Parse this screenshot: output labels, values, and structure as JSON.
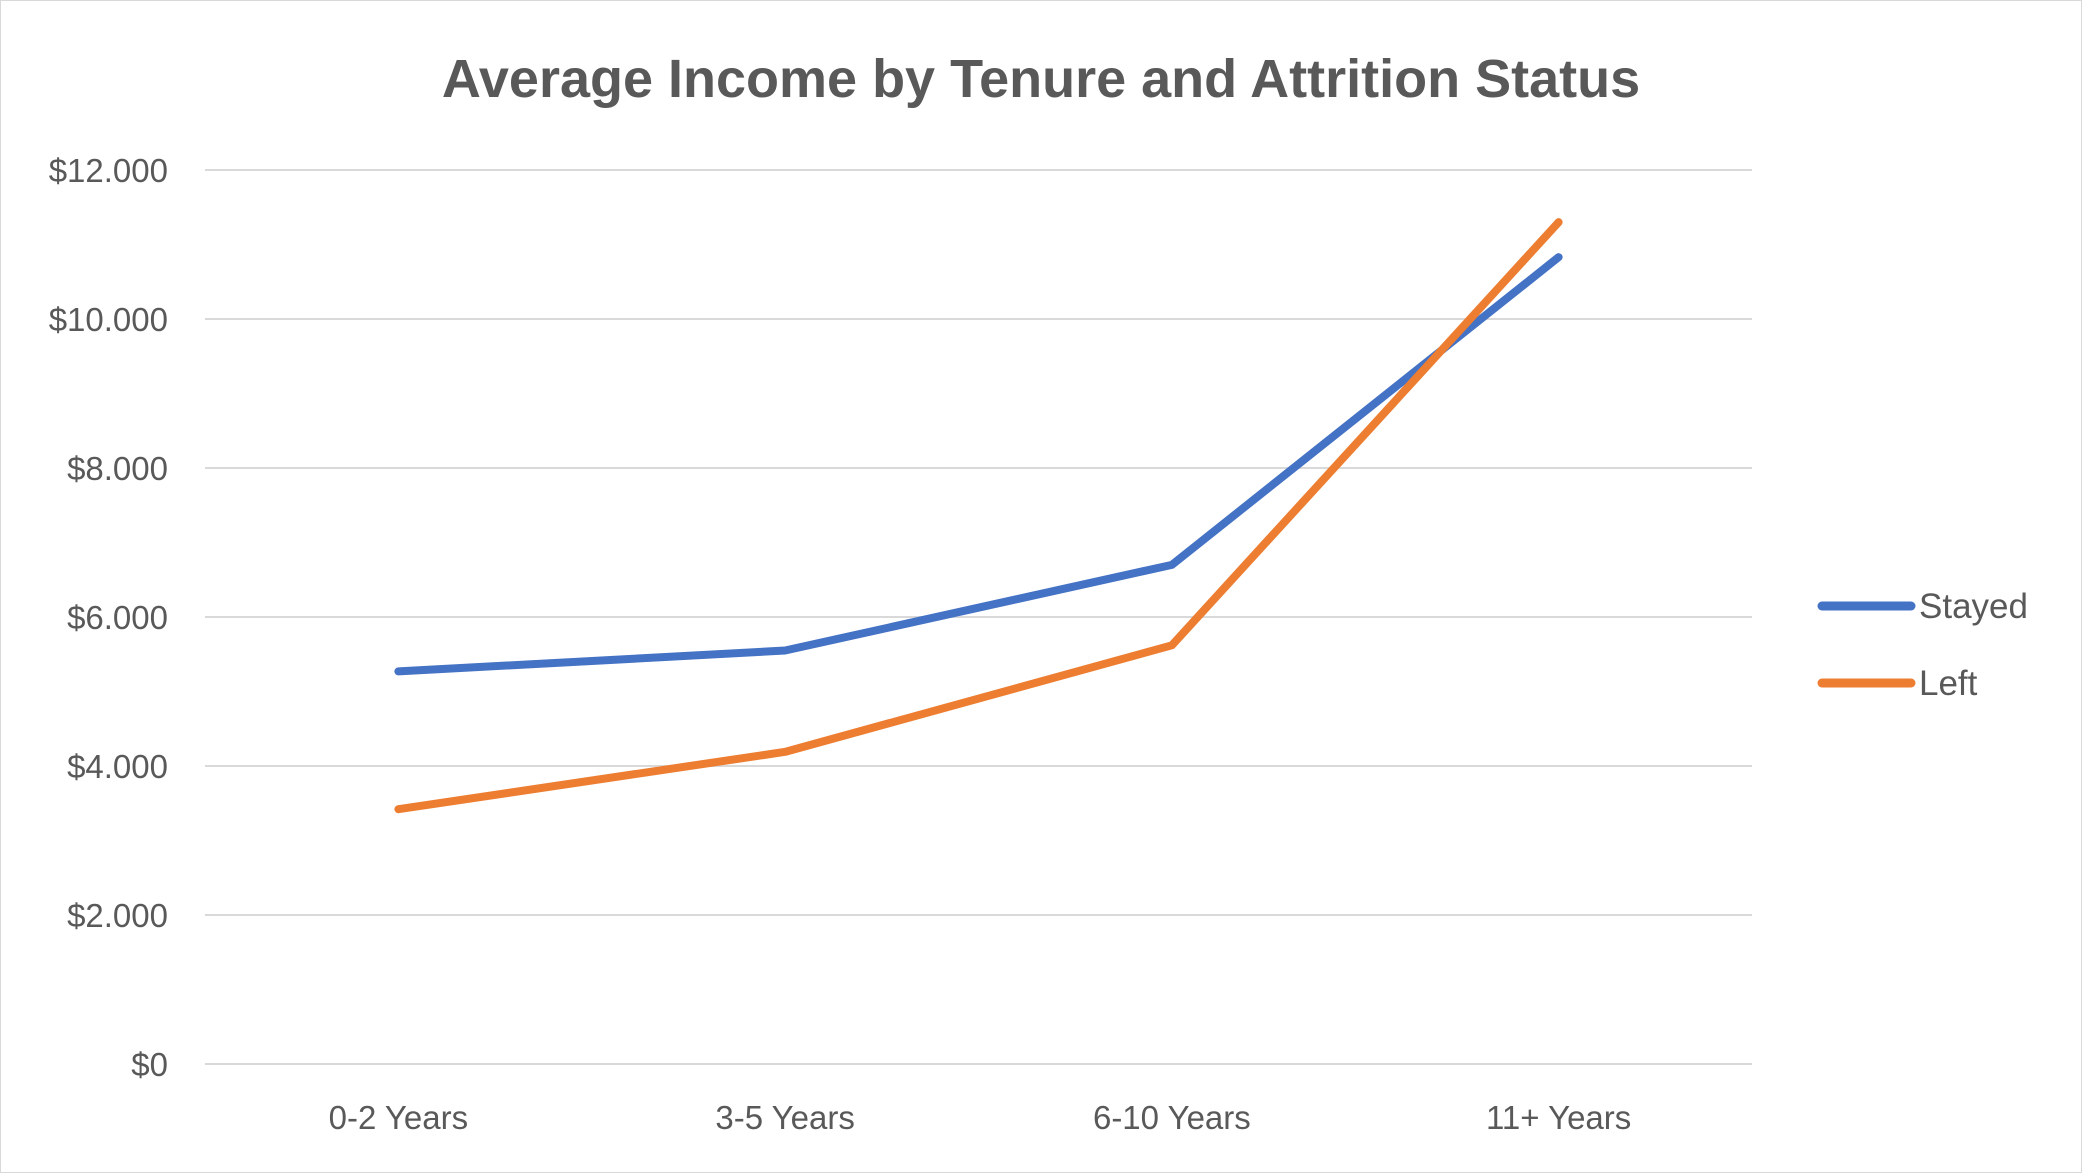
{
  "chart_data": {
    "type": "line",
    "title": "Average Income by Tenure and Attrition Status",
    "xlabel": "",
    "ylabel": "",
    "categories": [
      "0-2 Years",
      "3-5 Years",
      "6-10 Years",
      "11+ Years"
    ],
    "series": [
      {
        "name": "Stayed",
        "values": [
          5270,
          5550,
          6700,
          10830
        ],
        "color": "#4472C4"
      },
      {
        "name": "Left",
        "values": [
          3420,
          4190,
          5620,
          11300
        ],
        "color": "#ED7D31"
      }
    ],
    "ylim": [
      0,
      12000
    ],
    "yticks": [
      0,
      2000,
      4000,
      6000,
      8000,
      10000,
      12000
    ],
    "ytick_labels": [
      "$0",
      "$2.000",
      "$4.000",
      "$6.000",
      "$8.000",
      "$10.000",
      "$12.000"
    ],
    "grid": true,
    "gridline_color": "#d9d9d9",
    "legend_position": "right"
  }
}
